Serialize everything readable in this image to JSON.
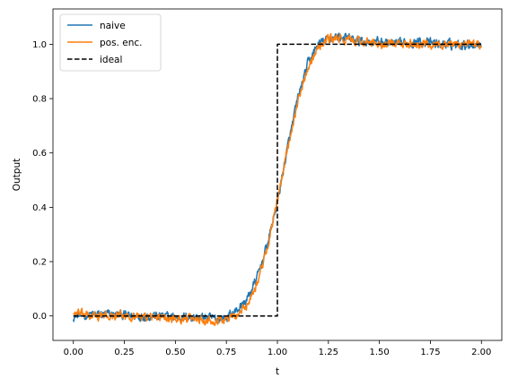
{
  "chart_data": {
    "type": "line",
    "xlabel": "t",
    "ylabel": "Output",
    "xlim": [
      -0.1,
      2.1
    ],
    "ylim": [
      -0.09,
      1.13
    ],
    "xticks": [
      0.0,
      0.25,
      0.5,
      0.75,
      1.0,
      1.25,
      1.5,
      1.75,
      2.0
    ],
    "xtick_labels": [
      "0.00",
      "0.25",
      "0.50",
      "0.75",
      "1.00",
      "1.25",
      "1.50",
      "1.75",
      "2.00"
    ],
    "yticks": [
      0.0,
      0.2,
      0.4,
      0.6,
      0.8,
      1.0
    ],
    "ytick_labels": [
      "0.0",
      "0.2",
      "0.4",
      "0.6",
      "0.8",
      "1.0"
    ],
    "grid": false,
    "legend_position": "top-left",
    "series": [
      {
        "name": "naive",
        "color": "#1f77b4",
        "style": "solid",
        "noise_amplitude": 0.03,
        "x": [
          0.0,
          0.1,
          0.2,
          0.3,
          0.4,
          0.5,
          0.6,
          0.7,
          0.75,
          0.8,
          0.85,
          0.9,
          0.95,
          1.0,
          1.05,
          1.1,
          1.15,
          1.2,
          1.25,
          1.3,
          1.4,
          1.5,
          1.6,
          1.7,
          1.8,
          1.9,
          2.0
        ],
        "y": [
          0.0,
          0.005,
          0.005,
          0.0,
          0.0,
          -0.005,
          -0.005,
          -0.01,
          -0.005,
          0.02,
          0.06,
          0.14,
          0.26,
          0.42,
          0.62,
          0.8,
          0.93,
          1.0,
          1.02,
          1.03,
          1.01,
          1.01,
          1.0,
          1.01,
          1.0,
          1.0,
          1.0
        ]
      },
      {
        "name": "pos. enc.",
        "color": "#ff7f0e",
        "style": "solid",
        "noise_amplitude": 0.028,
        "x": [
          0.0,
          0.1,
          0.2,
          0.3,
          0.4,
          0.5,
          0.6,
          0.7,
          0.75,
          0.8,
          0.85,
          0.9,
          0.95,
          1.0,
          1.05,
          1.1,
          1.15,
          1.2,
          1.25,
          1.3,
          1.4,
          1.5,
          1.6,
          1.7,
          1.8,
          1.9,
          2.0
        ],
        "y": [
          0.01,
          0.0,
          0.0,
          0.0,
          -0.005,
          -0.01,
          -0.01,
          -0.015,
          -0.01,
          0.0,
          0.04,
          0.12,
          0.25,
          0.42,
          0.62,
          0.79,
          0.92,
          0.99,
          1.02,
          1.02,
          1.01,
          1.0,
          1.0,
          1.0,
          1.0,
          1.0,
          1.0
        ]
      },
      {
        "name": "ideal",
        "color": "#000000",
        "style": "dashed",
        "noise_amplitude": 0,
        "x": [
          0.0,
          1.0,
          1.0,
          2.0
        ],
        "y": [
          0.0,
          0.0,
          1.0,
          1.0
        ]
      }
    ]
  }
}
